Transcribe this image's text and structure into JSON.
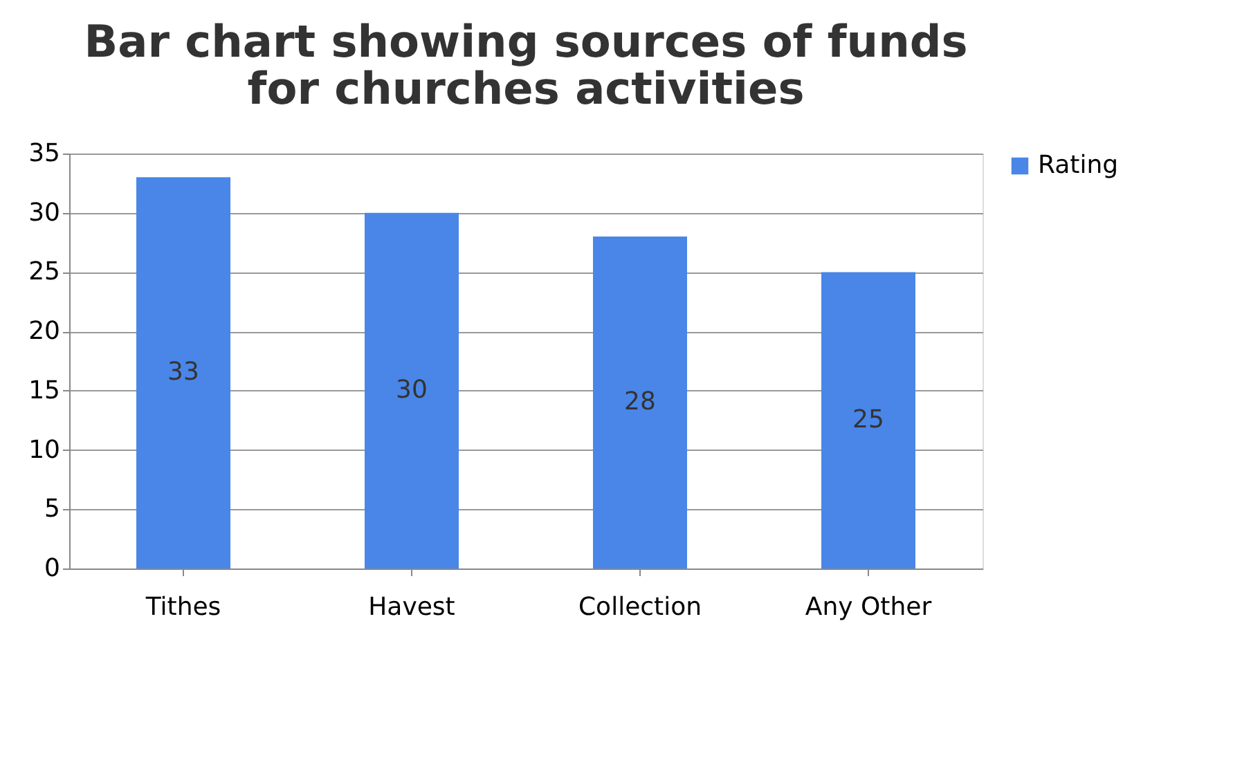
{
  "chart_data": {
    "type": "bar",
    "title": "Bar chart showing sources of  funds\nfor churches activities",
    "categories": [
      "Tithes",
      "Havest",
      "Collection",
      "Any Other"
    ],
    "series": [
      {
        "name": "Rating",
        "color": "#4a86e8",
        "values": [
          33,
          30,
          28,
          25
        ]
      }
    ],
    "ylim": [
      0,
      35
    ],
    "yticks": [
      0,
      5,
      10,
      15,
      20,
      25,
      30,
      35
    ],
    "grid": "y",
    "legend": "right",
    "data_labels": true
  }
}
